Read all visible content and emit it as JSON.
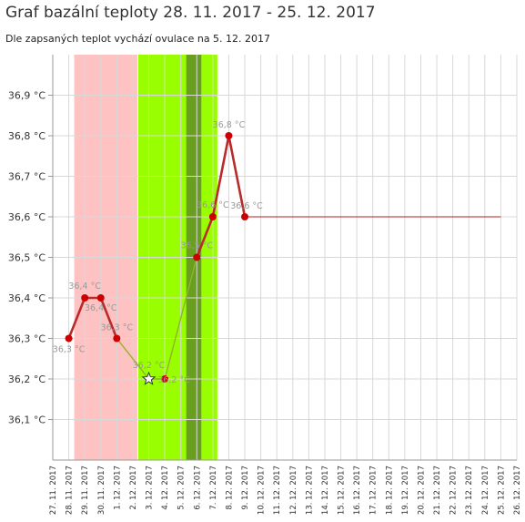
{
  "title": "Graf bazální teploty 28. 11. 2017 - 25. 12. 2017",
  "subtitle": "Dle zapsaných teplot vychází ovulace na 5. 12. 2017",
  "chart_data": {
    "type": "line",
    "categories": [
      "27. 11. 2017",
      "28. 11. 2017",
      "29. 11. 2017",
      "30. 11. 2017",
      "1. 12. 2017",
      "2. 12. 2017",
      "3. 12. 2017",
      "4. 12. 2017",
      "5. 12. 2017",
      "6. 12. 2017",
      "7. 12. 2017",
      "8. 12. 2017",
      "9. 12. 2017",
      "10. 12. 2017",
      "11. 12. 2017",
      "12. 12. 2017",
      "13. 12. 2017",
      "14. 12. 2017",
      "15. 12. 2017",
      "16. 12. 2017",
      "17. 12. 2017",
      "18. 12. 2017",
      "19. 12. 2017",
      "20. 12. 2017",
      "21. 12. 2017",
      "22. 12. 2017",
      "23. 12. 2017",
      "24. 12. 2017",
      "25. 12. 2017",
      "26. 12. 2017"
    ],
    "y_ticks": [
      "36,1 °C",
      "36,2 °C",
      "36,3 °C",
      "36,4 °C",
      "36,5 °C",
      "36,6 °C",
      "36,7 °C",
      "36,8 °C",
      "36,9 °C"
    ],
    "ylim": [
      36.0,
      37.0
    ],
    "series": [
      {
        "points": [
          {
            "date": "28. 11. 2017",
            "value": 36.3,
            "label": "36,3 °C"
          },
          {
            "date": "29. 11. 2017",
            "value": 36.4,
            "label": "36,4 °C"
          },
          {
            "date": "30. 11. 2017",
            "value": 36.4,
            "label": "36,4 °C"
          },
          {
            "date": "1. 12. 2017",
            "value": 36.3,
            "label": "36,3 °C"
          },
          {
            "date": "3. 12. 2017",
            "value": 36.2,
            "label": "36,2 °C",
            "marker": "star"
          },
          {
            "date": "4. 12. 2017",
            "value": 36.2,
            "label": "36,2 °C"
          },
          {
            "date": "6. 12. 2017",
            "value": 36.5,
            "label": "36,5 °C"
          },
          {
            "date": "7. 12. 2017",
            "value": 36.6,
            "label": "36,6 °C"
          },
          {
            "date": "8. 12. 2017",
            "value": 36.8,
            "label": "36,8 °C"
          },
          {
            "date": "9. 12. 2017",
            "value": 36.6,
            "label": "36,6 °C"
          }
        ]
      }
    ],
    "baseline": {
      "value": 36.6,
      "from": "9. 12. 2017",
      "to": "25. 12. 2017"
    },
    "bands": [
      {
        "from": "28. 11. 2017",
        "to": "2. 12. 2017",
        "color": "#ffc2c2"
      },
      {
        "from": "2. 12. 2017",
        "to": "7. 12. 2017",
        "color": "#99ff00"
      },
      {
        "from": "5. 12. 2017",
        "to": "6. 12. 2017",
        "color": "#6a9e20"
      }
    ],
    "colors": {
      "line": "#b92a2a",
      "marker": "#cc0000",
      "fertile_line": "#8fb42c",
      "baseline": "#b92a2a",
      "grid": "#d8d8d8"
    }
  }
}
